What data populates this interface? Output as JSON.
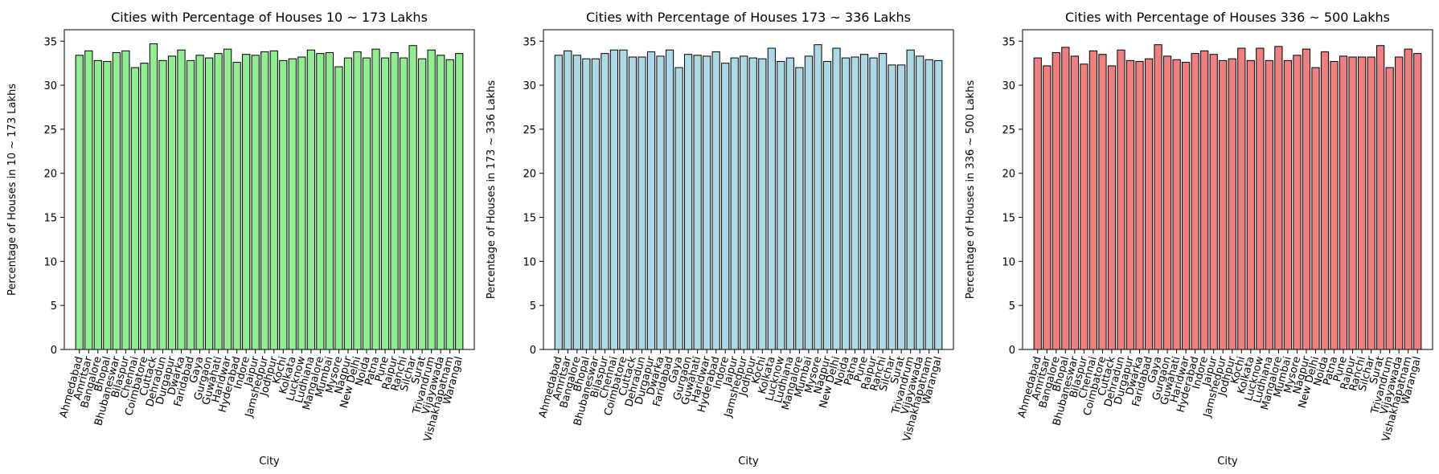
{
  "chart_data": [
    {
      "type": "bar",
      "title": "Cities with Percentage of Houses 10 ~ 173 Lakhs",
      "xlabel": "City",
      "ylabel": "Percentage of Houses in 10 ~ 173 Lakhs",
      "ylim": [
        0,
        36.3
      ],
      "yticks": [
        0,
        5,
        10,
        15,
        20,
        25,
        30,
        35
      ],
      "color": "#90ee90",
      "edgecolor": "#000000",
      "grid": false,
      "categories": [
        "Ahmedabad",
        "Amritsar",
        "Bangalore",
        "Bhopal",
        "Bhubaneswar",
        "Bilaspur",
        "Chennai",
        "Coimbatore",
        "Cuttack",
        "Dehradun",
        "Durgapur",
        "Dwarka",
        "Faridabad",
        "Gaya",
        "Gurgaon",
        "Guwahati",
        "Haridwar",
        "Hyderabad",
        "Indore",
        "Jaipur",
        "Jamshedpur",
        "Jodhpur",
        "Kochi",
        "Kolkata",
        "Lucknow",
        "Ludhiana",
        "Mangalore",
        "Mumbai",
        "Mysore",
        "Nagpur",
        "New Delhi",
        "Noida",
        "Patna",
        "Pune",
        "Raipur",
        "Ranchi",
        "Silchar",
        "Surat",
        "Trivandrum",
        "Vijayawada",
        "Vishakhapatnam",
        "Warangal"
      ],
      "values": [
        33.4,
        33.9,
        32.8,
        32.7,
        33.7,
        33.9,
        32.0,
        32.5,
        34.7,
        32.8,
        33.3,
        34.0,
        32.8,
        33.4,
        33.1,
        33.6,
        34.1,
        32.6,
        33.5,
        33.4,
        33.8,
        33.9,
        32.8,
        33.0,
        33.2,
        34.0,
        33.6,
        33.7,
        32.1,
        33.1,
        33.8,
        33.1,
        34.1,
        33.1,
        33.7,
        33.1,
        34.5,
        33.0,
        34.0,
        33.4,
        32.9,
        33.6
      ]
    },
    {
      "type": "bar",
      "title": "Cities with Percentage of Houses 173 ~ 336 Lakhs",
      "xlabel": "City",
      "ylabel": "Percentage of Houses in 173 ~ 336 Lakhs",
      "ylim": [
        0,
        36.3
      ],
      "yticks": [
        0,
        5,
        10,
        15,
        20,
        25,
        30,
        35
      ],
      "color": "#add8e6",
      "edgecolor": "#000000",
      "grid": false,
      "categories": [
        "Ahmedabad",
        "Amritsar",
        "Bangalore",
        "Bhopal",
        "Bhubaneswar",
        "Bilaspur",
        "Chennai",
        "Coimbatore",
        "Cuttack",
        "Dehradun",
        "Durgapur",
        "Dwarka",
        "Faridabad",
        "Gaya",
        "Gurgaon",
        "Guwahati",
        "Haridwar",
        "Hyderabad",
        "Indore",
        "Jaipur",
        "Jamshedpur",
        "Jodhpur",
        "Kochi",
        "Kolkata",
        "Lucknow",
        "Ludhiana",
        "Mangalore",
        "Mumbai",
        "Mysore",
        "Nagpur",
        "New Delhi",
        "Noida",
        "Patna",
        "Pune",
        "Raipur",
        "Ranchi",
        "Silchar",
        "Surat",
        "Trivandrum",
        "Vijayawada",
        "Vishakhapatnam",
        "Warangal"
      ],
      "values": [
        33.4,
        33.9,
        33.4,
        33.0,
        33.0,
        33.6,
        34.0,
        34.0,
        33.2,
        33.2,
        33.8,
        33.3,
        34.0,
        32.0,
        33.5,
        33.4,
        33.3,
        33.8,
        32.5,
        33.1,
        33.3,
        33.1,
        33.0,
        34.2,
        32.7,
        33.1,
        32.0,
        33.3,
        34.6,
        32.7,
        34.2,
        33.1,
        33.2,
        33.5,
        33.1,
        33.6,
        32.3,
        32.3,
        34.0,
        33.3,
        32.9,
        32.8
      ]
    },
    {
      "type": "bar",
      "title": "Cities with Percentage of Houses 336 ~ 500 Lakhs",
      "xlabel": "City",
      "ylabel": "Percentage of Houses in 336 ~ 500 Lakhs",
      "ylim": [
        0,
        36.3
      ],
      "yticks": [
        0,
        5,
        10,
        15,
        20,
        25,
        30,
        35
      ],
      "color": "#f08080",
      "edgecolor": "#000000",
      "grid": false,
      "categories": [
        "Ahmedabad",
        "Amritsar",
        "Bangalore",
        "Bhopal",
        "Bhubaneswar",
        "Bilaspur",
        "Chennai",
        "Coimbatore",
        "Cuttack",
        "Dehradun",
        "Durgapur",
        "Dwarka",
        "Faridabad",
        "Gaya",
        "Gurgaon",
        "Guwahati",
        "Haridwar",
        "Hyderabad",
        "Indore",
        "Jaipur",
        "Jamshedpur",
        "Jodhpur",
        "Kochi",
        "Kolkata",
        "Lucknow",
        "Ludhiana",
        "Mangalore",
        "Mumbai",
        "Mysore",
        "Nagpur",
        "New Delhi",
        "Noida",
        "Patna",
        "Pune",
        "Raipur",
        "Ranchi",
        "Silchar",
        "Surat",
        "Trivandrum",
        "Vijayawada",
        "Vishakhapatnam",
        "Warangal"
      ],
      "values": [
        33.1,
        32.2,
        33.7,
        34.3,
        33.3,
        32.4,
        33.9,
        33.5,
        32.2,
        34.0,
        32.8,
        32.7,
        33.0,
        34.6,
        33.3,
        32.9,
        32.6,
        33.6,
        33.9,
        33.5,
        32.8,
        33.0,
        34.2,
        32.8,
        34.2,
        32.8,
        34.4,
        32.8,
        33.4,
        34.1,
        32.0,
        33.8,
        32.7,
        33.3,
        33.2,
        33.2,
        33.2,
        34.5,
        32.0,
        33.2,
        34.1,
        33.6
      ]
    }
  ]
}
